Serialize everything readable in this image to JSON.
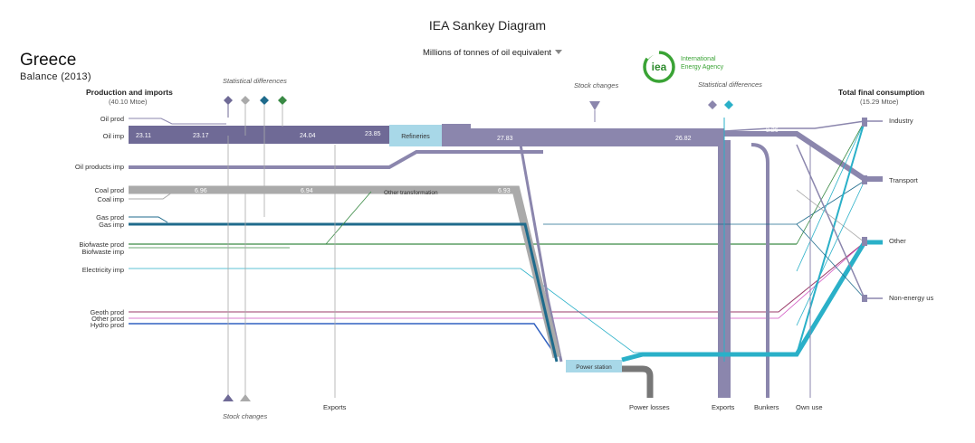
{
  "title": "IEA Sankey Diagram",
  "country": "Greece",
  "balance": "Balance (2013)",
  "units": "Millions of tonnes of oil equivalent",
  "logo": {
    "text": "iea",
    "org": [
      "International",
      "Energy Agency"
    ]
  },
  "production": {
    "header": "Production and imports",
    "sub": "(40.10 Mtoe)"
  },
  "consumption": {
    "header": "Total final consumption",
    "sub": "(15.29 Mtoe)"
  },
  "sources": [
    "Oil prod",
    "Oil imp",
    "Oil products imp",
    "Coal prod",
    "Coal imp",
    "Gas prod",
    "Gas imp",
    "Biofwaste prod",
    "Biofwaste imp",
    "Electricity imp",
    "Geoth prod",
    "Other prod",
    "Hydro prod"
  ],
  "sinks": [
    "Industry",
    "Transport",
    "Other",
    "Non-energy us"
  ],
  "nodes": {
    "refineries": "Refineries",
    "other_transformation": "Other transformation",
    "power_station": "Power station"
  },
  "top_labels": {
    "statistical_left": "Statistical differences",
    "stock_right": "Stock  changes",
    "statistical_right": "Statistical differences"
  },
  "bottom_labels": {
    "stock_changes": "Stock changes",
    "exports_left": "Exports",
    "power_losses": "Power losses",
    "exports_right": "Exports",
    "bunkers": "Bunkers",
    "own_use": "Own use"
  },
  "flow_values": {
    "oil_a": "23.11",
    "oil_b": "23.17",
    "oil_c": "24.04",
    "oil_d": "23.85",
    "ref_out": "27.83",
    "ref_exp": "26.82",
    "ref_top": "8.26",
    "coal_a": "6.96",
    "coal_b": "6.94",
    "coal_c": "6.93"
  },
  "colors": {
    "oil": "#8b86ad",
    "oil_dark": "#6f6a96",
    "coal": "#aaaaaa",
    "gas": "#1f6b8c",
    "bio": "#3a8a45",
    "elec": "#2ab0c8",
    "power_node": "#a8d8e8",
    "refinery_node": "#a8d8e8",
    "losses": "#777777"
  }
}
